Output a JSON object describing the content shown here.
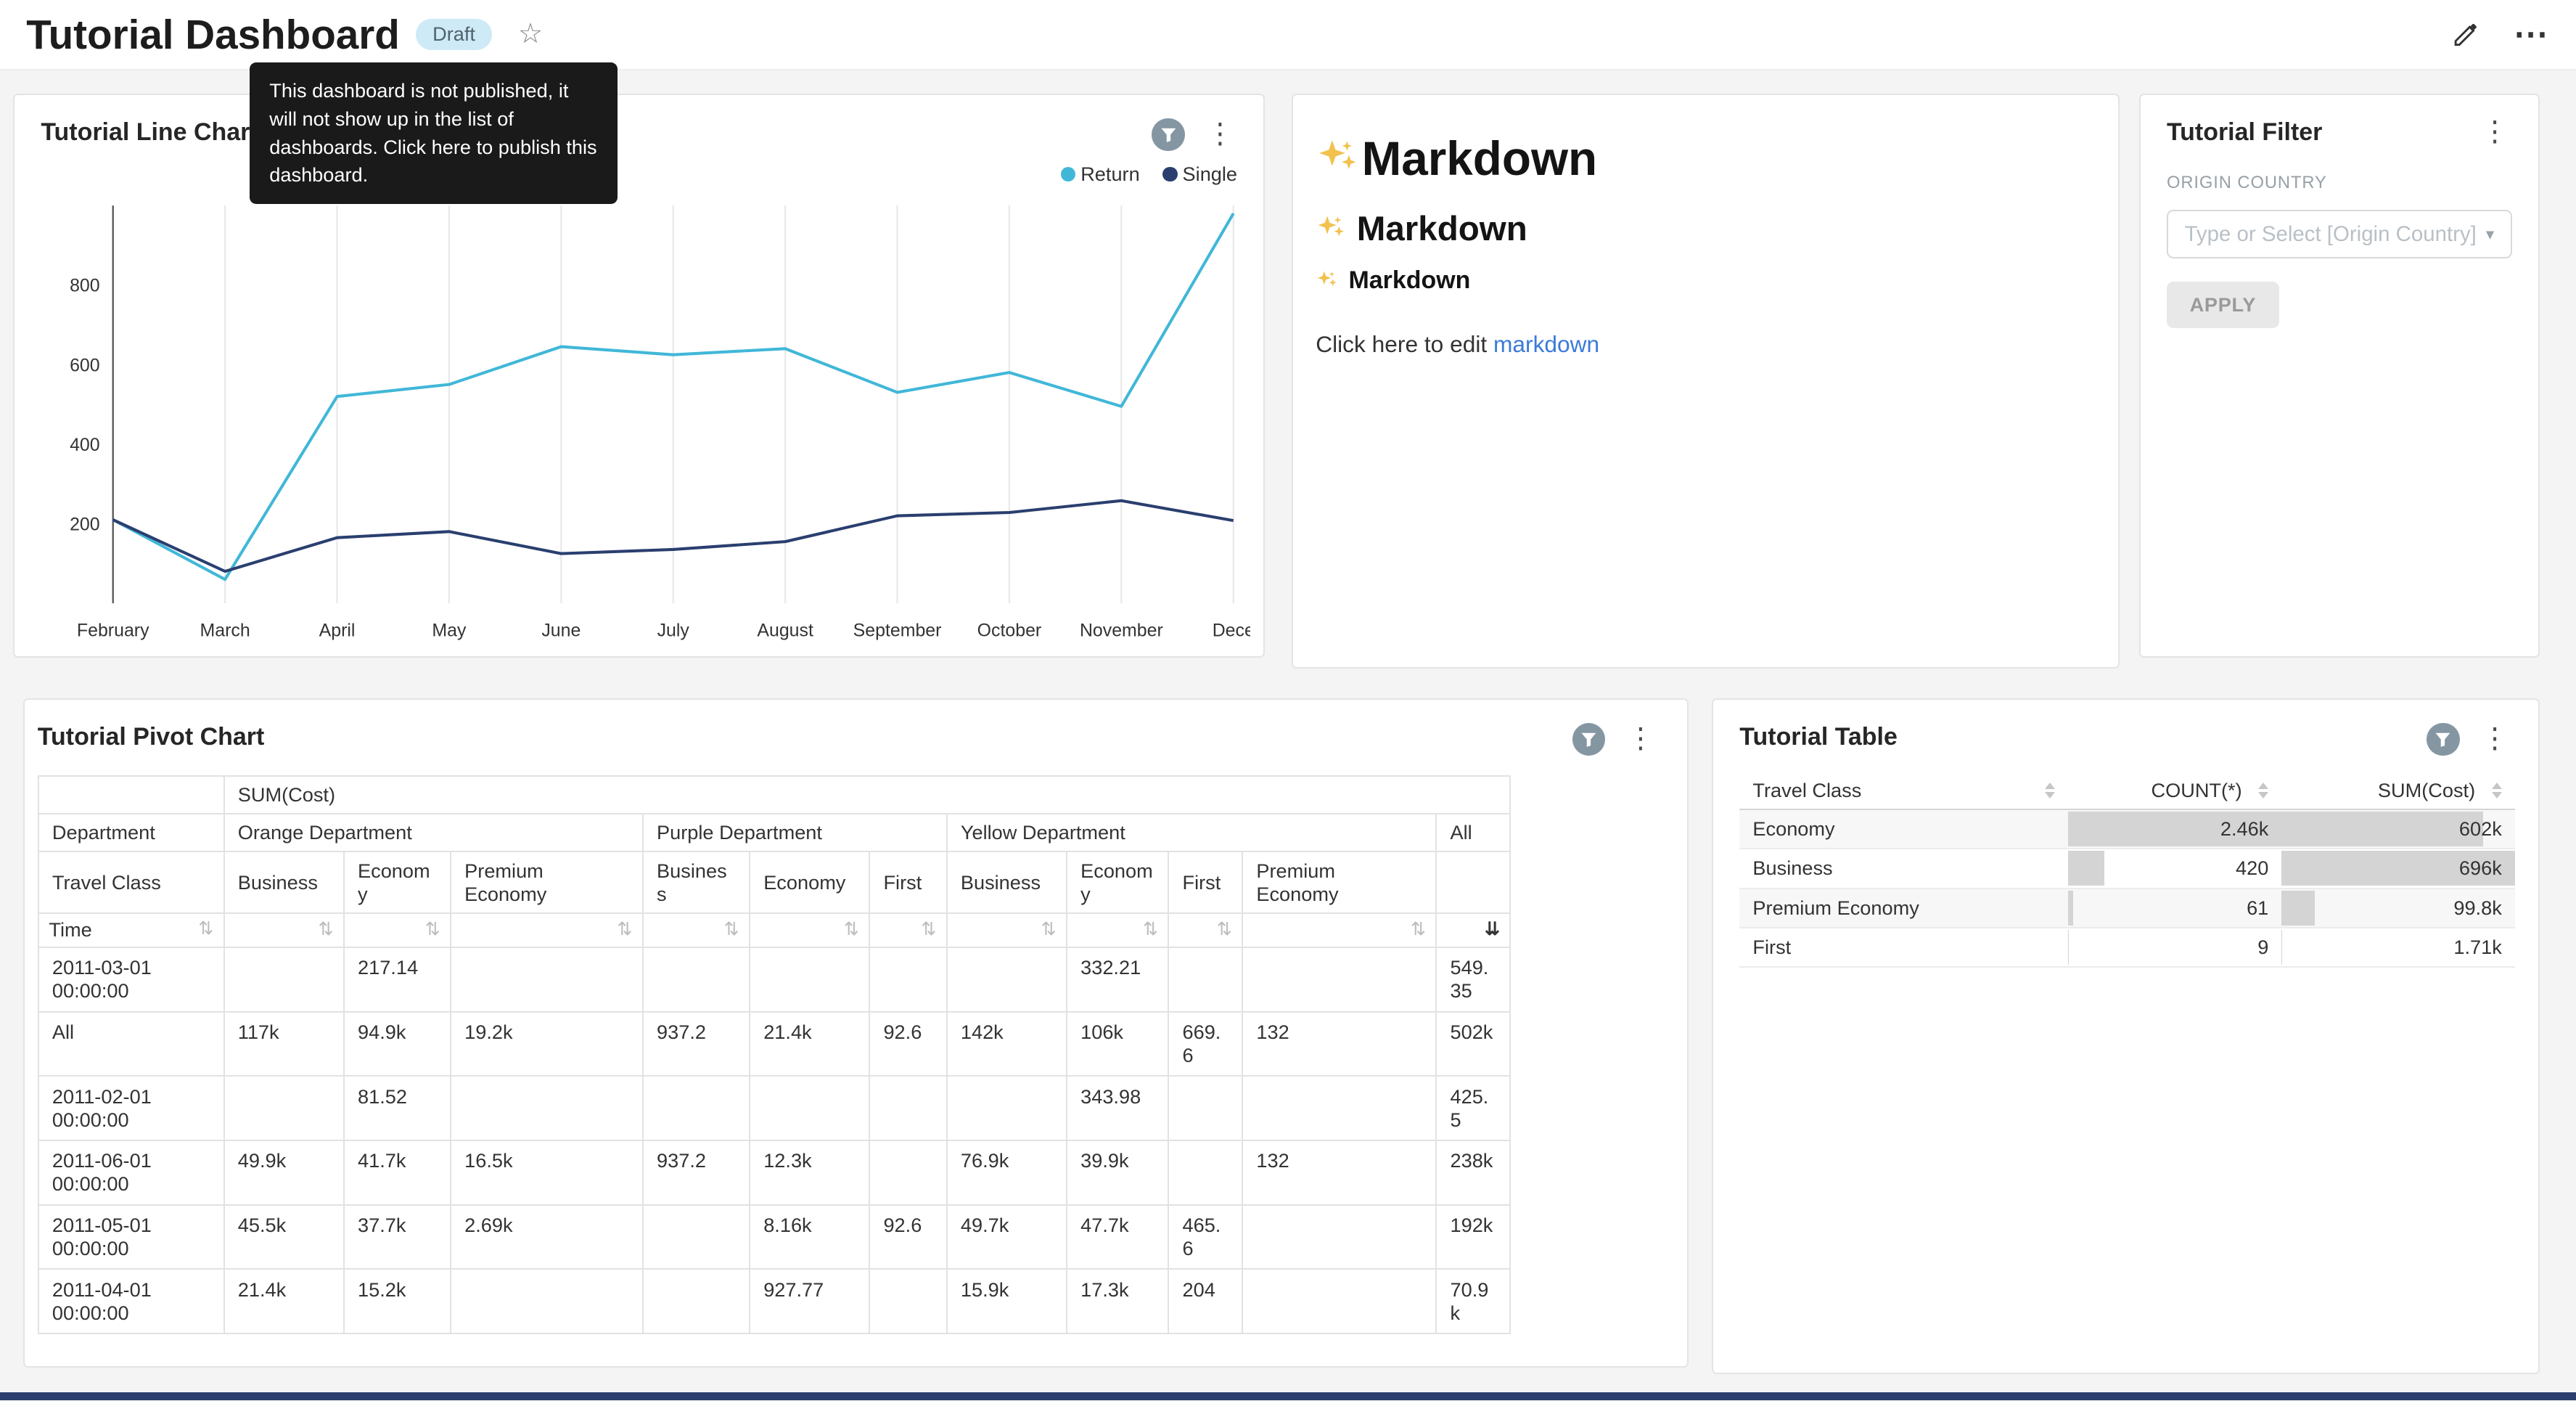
{
  "colors": {
    "link": "#3b7ad9",
    "draft_bg": "#cdeaf6",
    "draft_text": "#51626d",
    "tooltip_bg": "#1a1a1a",
    "bar_fill": "#d4d4d4",
    "bottom_bar": "#2c3e6e",
    "filter_badge": "#8596a3"
  },
  "header": {
    "title": "Tutorial Dashboard",
    "draft_badge": "Draft",
    "tooltip": "This dashboard is not published, it will not show up in the list of dashboards. Click here to publish this dashboard."
  },
  "markdown_card": {
    "h1": "Markdown",
    "h2": "Markdown",
    "h3": "Markdown",
    "icon": "sparkles",
    "paragraph_prefix": "Click here to edit ",
    "link_text": "markdown"
  },
  "filter_card": {
    "title": "Tutorial Filter",
    "field_label": "ORIGIN COUNTRY",
    "select_placeholder": "Type or Select [Origin Country]",
    "apply_label": "APPLY"
  },
  "chart_data": [
    {
      "type": "line",
      "title": "Tutorial Line Chart",
      "x": [
        "February",
        "March",
        "April",
        "May",
        "June",
        "July",
        "August",
        "September",
        "October",
        "November",
        "December"
      ],
      "x_tick_labels": [
        "February",
        "March",
        "April",
        "May",
        "June",
        "July",
        "August",
        "September",
        "October",
        "November",
        "Dece"
      ],
      "ylim": [
        0,
        1000
      ],
      "yticks": [
        200,
        400,
        600,
        800
      ],
      "grid": "vertical",
      "legend_position": "top-right",
      "series": [
        {
          "name": "Return",
          "color": "#41b7d8",
          "values": [
            210,
            60,
            520,
            550,
            645,
            625,
            640,
            530,
            580,
            495,
            980
          ]
        },
        {
          "name": "Single",
          "color": "#2a3f6f",
          "values": [
            210,
            80,
            165,
            180,
            125,
            135,
            155,
            220,
            228,
            258,
            208
          ]
        }
      ]
    },
    {
      "type": "table",
      "title": "Tutorial Pivot Chart",
      "metric_header": "SUM(Cost)",
      "col_dimension_label": "Department",
      "class_dimension_label": "Travel Class",
      "row_dimension_label": "Time",
      "sorted_column": "All",
      "column_groups": [
        {
          "name": "Orange Department",
          "columns": [
            "Business",
            "Economy",
            "Premium Economy"
          ]
        },
        {
          "name": "Purple Department",
          "columns": [
            "Business",
            "Economy",
            "First"
          ]
        },
        {
          "name": "Yellow Department",
          "columns": [
            "Business",
            "Economy",
            "First",
            "Premium Economy"
          ]
        },
        {
          "name": "All",
          "columns": [
            ""
          ]
        }
      ],
      "rows": [
        {
          "time": "2011-03-01 00:00:00",
          "values": [
            "",
            "217.14",
            "",
            "",
            "",
            "",
            "",
            "332.21",
            "",
            "",
            "549.35"
          ]
        },
        {
          "time": "All",
          "values": [
            "117k",
            "94.9k",
            "19.2k",
            "937.2",
            "21.4k",
            "92.6",
            "142k",
            "106k",
            "669.6",
            "132",
            "502k"
          ]
        },
        {
          "time": "2011-02-01 00:00:00",
          "values": [
            "",
            "81.52",
            "",
            "",
            "",
            "",
            "",
            "343.98",
            "",
            "",
            "425.5"
          ]
        },
        {
          "time": "2011-06-01 00:00:00",
          "values": [
            "49.9k",
            "41.7k",
            "16.5k",
            "937.2",
            "12.3k",
            "",
            "76.9k",
            "39.9k",
            "",
            "132",
            "238k"
          ]
        },
        {
          "time": "2011-05-01 00:00:00",
          "values": [
            "45.5k",
            "37.7k",
            "2.69k",
            "",
            "8.16k",
            "92.6",
            "49.7k",
            "47.7k",
            "465.6",
            "",
            "192k"
          ]
        },
        {
          "time": "2011-04-01 00:00:00",
          "values": [
            "21.4k",
            "15.2k",
            "",
            "",
            "927.77",
            "",
            "15.9k",
            "17.3k",
            "204",
            "",
            "70.9k"
          ]
        }
      ]
    },
    {
      "type": "table",
      "title": "Tutorial Table",
      "columns": [
        "Travel Class",
        "COUNT(*)",
        "SUM(Cost)"
      ],
      "rows": [
        {
          "travel_class": "Economy",
          "count": "2.46k",
          "count_bar_pct": 100,
          "sum": "602k",
          "sum_bar_pct": 86.5
        },
        {
          "travel_class": "Business",
          "count": "420",
          "count_bar_pct": 17,
          "sum": "696k",
          "sum_bar_pct": 100
        },
        {
          "travel_class": "Premium Economy",
          "count": "61",
          "count_bar_pct": 2.5,
          "sum": "99.8k",
          "sum_bar_pct": 14.3
        },
        {
          "travel_class": "First",
          "count": "9",
          "count_bar_pct": 0.4,
          "sum": "1.71k",
          "sum_bar_pct": 0.25
        }
      ]
    }
  ]
}
